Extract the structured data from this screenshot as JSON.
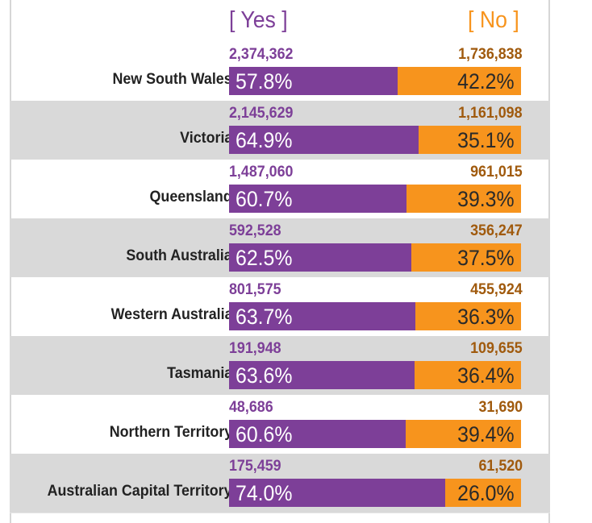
{
  "header": {
    "yes_label": "[ Yes ]",
    "no_label": "[ No ]"
  },
  "colors": {
    "yes": "#7d3f98",
    "no": "#f7941d",
    "no_count": "#a05a0d",
    "row_shade": "#d9d9d9"
  },
  "chart_data": {
    "type": "bar",
    "orientation": "horizontal-stacked",
    "title": "",
    "series": [
      {
        "name": "[ Yes ]",
        "counts": [
          "2,374,362",
          "2,145,629",
          "1,487,060",
          "592,528",
          "801,575",
          "191,948",
          "48,686",
          "175,459"
        ],
        "percent_labels": [
          "57.8%",
          "64.9%",
          "60.7%",
          "62.5%",
          "63.7%",
          "63.6%",
          "60.6%",
          "74.0%"
        ],
        "values": [
          57.8,
          64.9,
          60.7,
          62.5,
          63.7,
          63.6,
          60.6,
          74.0
        ]
      },
      {
        "name": "[ No ]",
        "counts": [
          "1,736,838",
          "1,161,098",
          "961,015",
          "356,247",
          "455,924",
          "109,655",
          "31,690",
          "61,520"
        ],
        "percent_labels": [
          "42.2%",
          "35.1%",
          "39.3%",
          "37.5%",
          "36.3%",
          "36.4%",
          "39.4%",
          "26.0%"
        ],
        "values": [
          42.2,
          35.1,
          39.3,
          37.5,
          36.3,
          36.4,
          39.4,
          26.0
        ]
      }
    ],
    "categories": [
      "New South Wales",
      "Victoria",
      "Queensland",
      "South Australia",
      "Western Australia",
      "Tasmania",
      "Northern Territory",
      "Australian Capital Territory"
    ],
    "xlim": [
      0,
      100
    ],
    "legend": "top"
  }
}
